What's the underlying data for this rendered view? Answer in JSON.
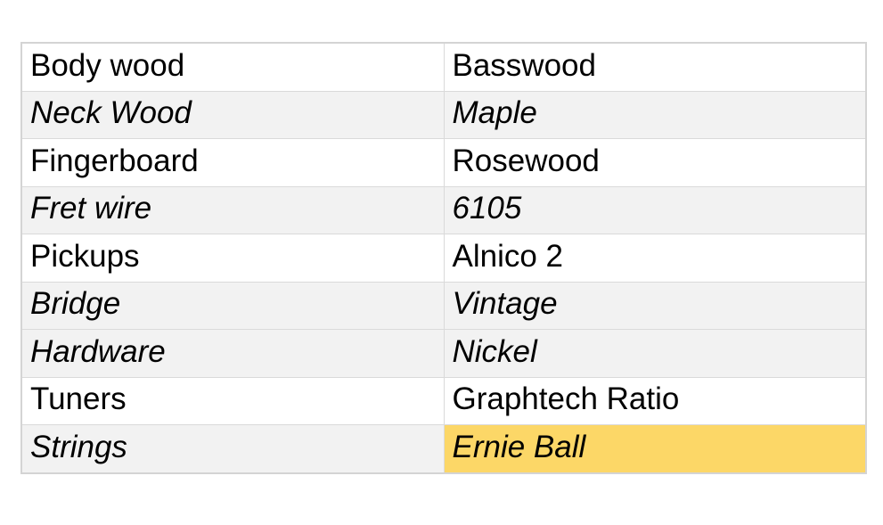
{
  "colors": {
    "page-bg": "#ffffff",
    "table-border": "#d4d4d4",
    "cell-border": "#dadada",
    "stripe-bg": "#f2f2f2",
    "highlight-bg": "#fcd767",
    "text": "#000000"
  },
  "table": {
    "rows": [
      {
        "label": "Body wood",
        "value": "Basswood",
        "italic": false,
        "shaded": false,
        "value_highlighted": false
      },
      {
        "label": "Neck Wood",
        "value": "Maple",
        "italic": true,
        "shaded": true,
        "value_highlighted": false
      },
      {
        "label": "Fingerboard",
        "value": "Rosewood",
        "italic": false,
        "shaded": false,
        "value_highlighted": false
      },
      {
        "label": "Fret wire",
        "value": "6105",
        "italic": true,
        "shaded": true,
        "value_highlighted": false
      },
      {
        "label": "Pickups",
        "value": "Alnico 2",
        "italic": false,
        "shaded": false,
        "value_highlighted": false
      },
      {
        "label": "Bridge",
        "value": "Vintage",
        "italic": true,
        "shaded": true,
        "value_highlighted": false
      },
      {
        "label": "Hardware",
        "value": "Nickel",
        "italic": true,
        "shaded": true,
        "value_highlighted": false
      },
      {
        "label": "Tuners",
        "value": "Graphtech Ratio",
        "italic": false,
        "shaded": false,
        "value_highlighted": false
      },
      {
        "label": "Strings",
        "value": "Ernie Ball",
        "italic": true,
        "shaded": true,
        "value_highlighted": true
      }
    ]
  }
}
